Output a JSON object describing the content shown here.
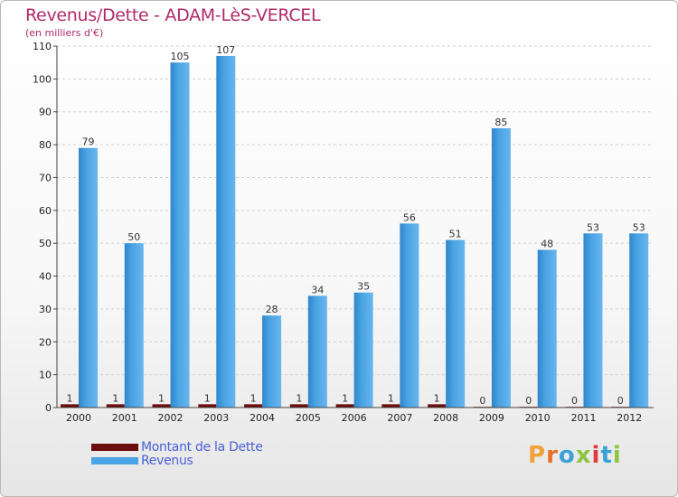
{
  "title": "Revenus/Dette - ADAM-LèS-VERCEL",
  "subtitle": "(en milliers d'€)",
  "legend": {
    "debt_label": "Montant de la Dette",
    "revenue_label": "Revenus"
  },
  "logo": {
    "letters": [
      "P",
      "r",
      "o",
      "x",
      "i",
      "t",
      "i"
    ]
  },
  "colors": {
    "debt": "#6b0d0d",
    "revenue": "#4aa3e3",
    "revenue_dark": "#2f86cc",
    "title": "#b02a6a",
    "legend_text": "#4a5fd6",
    "logo": [
      "#f2a23a",
      "#e8702a",
      "#3aa0d8",
      "#8cc63e",
      "#e23a3a",
      "#3aa0d8",
      "#8cc63e"
    ]
  },
  "chart_data": {
    "type": "bar",
    "title": "Revenus/Dette - ADAM-LèS-VERCEL",
    "ylabel": "(en milliers d'€)",
    "xlabel": "",
    "ylim": [
      0,
      110
    ],
    "yticks": [
      0,
      10,
      20,
      30,
      40,
      50,
      60,
      70,
      80,
      90,
      100,
      110
    ],
    "grid": true,
    "legend_position": "bottom-left",
    "categories": [
      "2000",
      "2001",
      "2002",
      "2003",
      "2004",
      "2005",
      "2006",
      "2007",
      "2008",
      "2009",
      "2010",
      "2011",
      "2012"
    ],
    "series": [
      {
        "name": "Montant de la Dette",
        "values": [
          1,
          1,
          1,
          1,
          1,
          1,
          1,
          1,
          1,
          0,
          0,
          0,
          0
        ]
      },
      {
        "name": "Revenus",
        "values": [
          79,
          50,
          105,
          107,
          28,
          34,
          35,
          56,
          51,
          85,
          48,
          53,
          53
        ]
      }
    ]
  }
}
